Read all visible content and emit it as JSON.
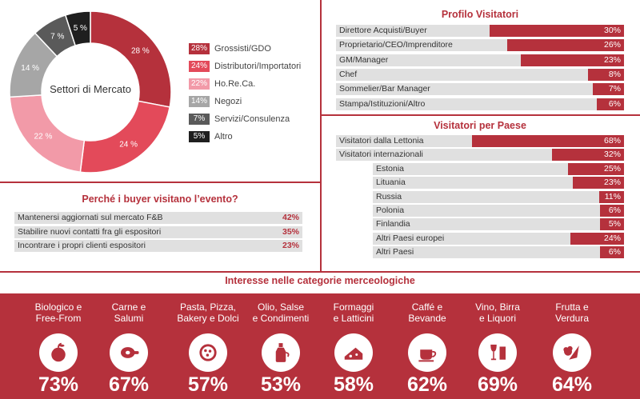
{
  "colors": {
    "accent": "#b5313c",
    "bar_bg": "#e0e0e0"
  },
  "chart_data": [
    {
      "type": "pie",
      "title": "Settori di Mercato",
      "categories": [
        "Grossisti/GDO",
        "Distributori/Importatori",
        "Ho.Re.Ca.",
        "Negozi",
        "Servizi/Consulenza",
        "Altro"
      ],
      "values": [
        28,
        24,
        22,
        14,
        7,
        5
      ],
      "colors": [
        "#b5313c",
        "#e34a5a",
        "#f29aa8",
        "#a6a6a6",
        "#5a5a5a",
        "#1f1f1f"
      ],
      "slice_labels": [
        "28 %",
        "24 %",
        "22 %",
        "14 %",
        "7 %",
        "5 %"
      ],
      "legend_labels": [
        "28%",
        "24%",
        "22%",
        "14%",
        "7%",
        "5%"
      ]
    },
    {
      "type": "bar",
      "title": "Profilo Visitatori",
      "categories": [
        "Direttore Acquisti/Buyer",
        "Proprietario/CEO/Imprenditore",
        "GM/Manager",
        "Chef",
        "Sommelier/Bar Manager",
        "Stampa/Istituzioni/Altro"
      ],
      "values": [
        30,
        26,
        23,
        8,
        7,
        6
      ],
      "value_labels": [
        "30%",
        "26%",
        "23%",
        "8%",
        "7%",
        "6%"
      ]
    },
    {
      "type": "bar",
      "title": "Visitatori per Paese",
      "categories": [
        "Visitatori dalla Lettonia",
        "Visitatori internazionali",
        "Estonia",
        "Lituania",
        "Russia",
        "Polonia",
        "Finlandia",
        "Altri Paesi europei",
        "Altri Paesi"
      ],
      "values": [
        68,
        32,
        25,
        23,
        11,
        6,
        5,
        24,
        6
      ],
      "value_labels": [
        "68%",
        "32%",
        "25%",
        "23%",
        "11%",
        "6%",
        "5%",
        "24%",
        "6%"
      ]
    },
    {
      "type": "table",
      "title": "Perché i buyer visitano l’evento?",
      "categories": [
        "Mantenersi aggiornati sul mercato F&B",
        "Stabilire nuovi contatti fra gli espositori",
        "Incontrare i propri clienti espositori"
      ],
      "values": [
        42,
        35,
        23
      ],
      "value_labels": [
        "42%",
        "35%",
        "23%"
      ]
    },
    {
      "type": "table",
      "title": "Interesse nelle categorie merceologiche",
      "categories": [
        "Biologico e Free-From",
        "Carne e Salumi",
        "Pasta, Pizza, Bakery e Dolci",
        "Olio, Salse e Condimenti",
        "Formaggi e Latticini",
        "Caffé e Bevande",
        "Vino, Birra e Liquori",
        "Frutta e Verdura"
      ],
      "values": [
        73,
        67,
        57,
        53,
        58,
        62,
        69,
        64
      ],
      "value_labels": [
        "73%",
        "67%",
        "57%",
        "53%",
        "58%",
        "62%",
        "69%",
        "64%"
      ],
      "name_lines": [
        [
          "Biologico e",
          "Free-From"
        ],
        [
          "Carne e",
          "Salumi"
        ],
        [
          "Pasta, Pizza,",
          "Bakery e Dolci"
        ],
        [
          "Olio, Salse",
          "e Condimenti"
        ],
        [
          "Formaggi",
          "e Latticini"
        ],
        [
          "Caffé e",
          "Bevande"
        ],
        [
          "Vino, Birra",
          "e Liquori"
        ],
        [
          "Frutta e",
          "Verdura"
        ]
      ],
      "icons": [
        "apple-icon",
        "ham-icon",
        "pizza-icon",
        "oil-bottle-icon",
        "cheese-icon",
        "coffee-cup-icon",
        "wine-glasses-icon",
        "vegetables-icon"
      ]
    }
  ]
}
